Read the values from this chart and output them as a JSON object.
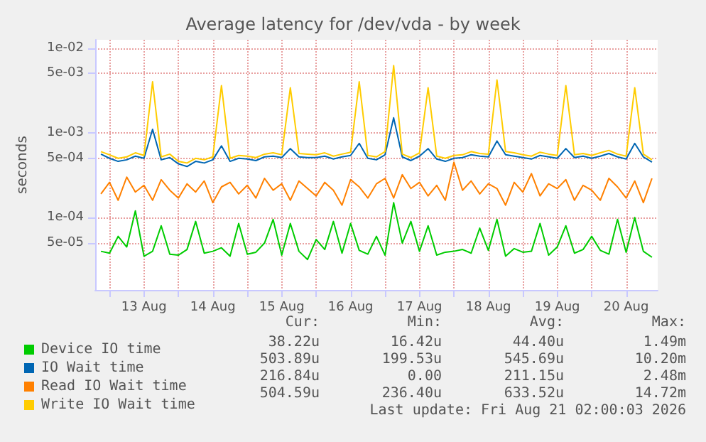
{
  "chart_data": {
    "type": "line",
    "title": "Average latency for /dev/vda - by week",
    "ylabel": "seconds",
    "log": "y",
    "grid": true,
    "legend": "bottom",
    "marker": "none",
    "line_style": "solid",
    "xlim": [
      "2026-08-12T19:00",
      "2026-08-20T23:00"
    ],
    "xticks": [
      {
        "value": "2026-08-13T00:00",
        "label": null
      },
      {
        "value": "2026-08-13T12:00",
        "label": "13 Aug"
      },
      {
        "value": "2026-08-14T00:00",
        "label": null
      },
      {
        "value": "2026-08-14T12:00",
        "label": "14 Aug"
      },
      {
        "value": "2026-08-15T00:00",
        "label": null
      },
      {
        "value": "2026-08-15T12:00",
        "label": "15 Aug"
      },
      {
        "value": "2026-08-16T00:00",
        "label": null
      },
      {
        "value": "2026-08-16T12:00",
        "label": "16 Aug"
      },
      {
        "value": "2026-08-17T00:00",
        "label": null
      },
      {
        "value": "2026-08-17T12:00",
        "label": "17 Aug"
      },
      {
        "value": "2026-08-18T00:00",
        "label": null
      },
      {
        "value": "2026-08-18T12:00",
        "label": "18 Aug"
      },
      {
        "value": "2026-08-19T00:00",
        "label": null
      },
      {
        "value": "2026-08-19T12:00",
        "label": "19 Aug"
      },
      {
        "value": "2026-08-20T00:00",
        "label": null
      },
      {
        "value": "2026-08-20T12:00",
        "label": "20 Aug"
      }
    ],
    "ylim": [
      1.4e-05,
      0.0125
    ],
    "yticks": [
      {
        "value": 5e-05,
        "label": "5e-05"
      },
      {
        "value": 0.0001,
        "label": "1e-04"
      },
      {
        "value": 0.0005,
        "label": "5e-04"
      },
      {
        "value": 0.001,
        "label": "1e-03"
      },
      {
        "value": 0.005,
        "label": "5e-03"
      },
      {
        "value": 0.01,
        "label": "1e-02"
      }
    ],
    "x": [
      "2026-08-12T21:00",
      "2026-08-13T00:00",
      "2026-08-13T03:00",
      "2026-08-13T06:00",
      "2026-08-13T09:00",
      "2026-08-13T12:00",
      "2026-08-13T15:00",
      "2026-08-13T18:00",
      "2026-08-13T21:00",
      "2026-08-14T00:00",
      "2026-08-14T03:00",
      "2026-08-14T06:00",
      "2026-08-14T09:00",
      "2026-08-14T12:00",
      "2026-08-14T15:00",
      "2026-08-14T18:00",
      "2026-08-14T21:00",
      "2026-08-15T00:00",
      "2026-08-15T03:00",
      "2026-08-15T06:00",
      "2026-08-15T09:00",
      "2026-08-15T12:00",
      "2026-08-15T15:00",
      "2026-08-15T18:00",
      "2026-08-15T21:00",
      "2026-08-16T00:00",
      "2026-08-16T03:00",
      "2026-08-16T06:00",
      "2026-08-16T09:00",
      "2026-08-16T12:00",
      "2026-08-16T15:00",
      "2026-08-16T18:00",
      "2026-08-16T21:00",
      "2026-08-17T00:00",
      "2026-08-17T03:00",
      "2026-08-17T06:00",
      "2026-08-17T09:00",
      "2026-08-17T12:00",
      "2026-08-17T15:00",
      "2026-08-17T18:00",
      "2026-08-17T21:00",
      "2026-08-18T00:00",
      "2026-08-18T03:00",
      "2026-08-18T06:00",
      "2026-08-18T09:00",
      "2026-08-18T12:00",
      "2026-08-18T15:00",
      "2026-08-18T18:00",
      "2026-08-18T21:00",
      "2026-08-19T00:00",
      "2026-08-19T03:00",
      "2026-08-19T06:00",
      "2026-08-19T09:00",
      "2026-08-19T12:00",
      "2026-08-19T15:00",
      "2026-08-19T18:00",
      "2026-08-19T21:00",
      "2026-08-20T00:00",
      "2026-08-20T03:00",
      "2026-08-20T06:00",
      "2026-08-20T09:00",
      "2026-08-20T12:00",
      "2026-08-20T15:00",
      "2026-08-20T18:00",
      "2026-08-20T21:00"
    ],
    "series": [
      {
        "name": "Device IO time",
        "color": "#00cc00",
        "values": [
          4e-05,
          3.8e-05,
          6e-05,
          4.5e-05,
          0.00012,
          3.5e-05,
          4e-05,
          8e-05,
          3.7e-05,
          3.6e-05,
          4.2e-05,
          9e-05,
          3.8e-05,
          4e-05,
          4.4e-05,
          3.5e-05,
          8.5e-05,
          3.7e-05,
          3.9e-05,
          5e-05,
          9.5e-05,
          3.6e-05,
          8.5e-05,
          4e-05,
          3.2e-05,
          5.5e-05,
          4.2e-05,
          9e-05,
          3.8e-05,
          8.5e-05,
          4.1e-05,
          3.7e-05,
          6e-05,
          3.6e-05,
          0.00015,
          5e-05,
          9e-05,
          4e-05,
          8e-05,
          3.6e-05,
          3.9e-05,
          4e-05,
          4.2e-05,
          3.8e-05,
          7.5e-05,
          4.1e-05,
          9.5e-05,
          3.5e-05,
          4.3e-05,
          3.9e-05,
          4e-05,
          8.5e-05,
          3.6e-05,
          4.5e-05,
          8e-05,
          3.8e-05,
          4.2e-05,
          6e-05,
          4.1e-05,
          3.7e-05,
          9.5e-05,
          3.9e-05,
          0.0001,
          4e-05,
          3.4e-05
        ]
      },
      {
        "name": "IO Wait time",
        "color": "#0066b3",
        "values": [
          0.00056,
          0.0005,
          0.00046,
          0.00048,
          0.00053,
          0.0005,
          0.0011,
          0.00048,
          0.00051,
          0.00043,
          0.0004,
          0.00046,
          0.00044,
          0.00048,
          0.0007,
          0.00046,
          0.0005,
          0.00049,
          0.00047,
          0.00052,
          0.00053,
          0.00051,
          0.00065,
          0.00052,
          0.00051,
          0.00051,
          0.00053,
          0.00049,
          0.00052,
          0.00054,
          0.00075,
          0.0005,
          0.00048,
          0.00055,
          0.0015,
          0.00052,
          0.00047,
          0.00053,
          0.00065,
          0.00049,
          0.00046,
          0.0005,
          0.00051,
          0.00055,
          0.00053,
          0.00052,
          0.0008,
          0.00055,
          0.00053,
          0.00051,
          0.00049,
          0.00054,
          0.00052,
          0.0005,
          0.00065,
          0.00051,
          0.00053,
          0.0005,
          0.00053,
          0.00057,
          0.00052,
          0.00049,
          0.00075,
          0.00052,
          0.00045
        ]
      },
      {
        "name": "Read IO Wait time",
        "color": "#ff8000",
        "values": [
          0.00019,
          0.00026,
          0.00016,
          0.0003,
          0.0002,
          0.00024,
          0.00016,
          0.00028,
          0.00021,
          0.00017,
          0.00025,
          0.0002,
          0.00027,
          0.00015,
          0.00023,
          0.00026,
          0.00019,
          0.00024,
          0.00017,
          0.00029,
          0.00021,
          0.00025,
          0.00016,
          0.00027,
          0.00022,
          0.00018,
          0.00026,
          0.00021,
          0.00014,
          0.00028,
          0.00023,
          0.00017,
          0.00025,
          0.00029,
          0.00017,
          0.00032,
          0.00022,
          0.00026,
          0.00018,
          0.00024,
          0.00016,
          0.00045,
          0.00021,
          0.00027,
          0.00019,
          0.00025,
          0.00022,
          0.00014,
          0.00026,
          0.0002,
          0.00033,
          0.00018,
          0.00025,
          0.00022,
          0.00028,
          0.00016,
          0.00024,
          0.00021,
          0.00016,
          0.00029,
          0.00023,
          0.00017,
          0.00027,
          0.00015,
          0.00029
        ]
      },
      {
        "name": "Write IO Wait time",
        "color": "#ffcc00",
        "values": [
          0.0006,
          0.00055,
          0.0005,
          0.00052,
          0.00058,
          0.00054,
          0.004,
          0.00052,
          0.00056,
          0.00046,
          0.00044,
          0.0005,
          0.00048,
          0.00052,
          0.0036,
          0.0005,
          0.00054,
          0.00053,
          0.00051,
          0.00056,
          0.00058,
          0.00055,
          0.0034,
          0.00057,
          0.00056,
          0.00055,
          0.00058,
          0.00053,
          0.00056,
          0.00059,
          0.004,
          0.00054,
          0.00052,
          0.0006,
          0.0062,
          0.00056,
          0.00051,
          0.00058,
          0.0034,
          0.00053,
          0.0005,
          0.00054,
          0.00055,
          0.0006,
          0.00057,
          0.00056,
          0.0042,
          0.0006,
          0.00058,
          0.00055,
          0.00053,
          0.00059,
          0.00056,
          0.00054,
          0.0036,
          0.00055,
          0.00057,
          0.00054,
          0.00058,
          0.00062,
          0.00056,
          0.00053,
          0.0034,
          0.00056,
          0.00048
        ]
      }
    ],
    "annotations": [
      "Cur:",
      "Min:",
      "Avg:",
      "Max:",
      "38.22u",
      "16.42u",
      "44.40u",
      "1.49m",
      "503.89u",
      "199.53u",
      "545.69u",
      "10.20m",
      "216.84u",
      "0.00",
      "211.15u",
      "2.48m",
      "504.59u",
      "236.40u",
      "633.52u",
      "14.72m",
      "Last update: Fri Aug 21 02:00:03 2026"
    ]
  }
}
